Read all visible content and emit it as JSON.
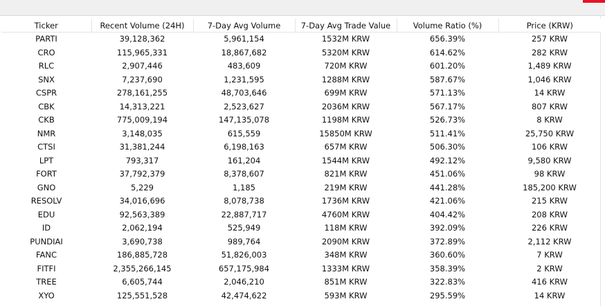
{
  "table": {
    "headers": [
      "Ticker",
      "Recent Volume (24H)",
      "7-Day Avg Volume",
      "7-Day Avg Trade Value",
      "Volume Ratio (%)",
      "Price (KRW)"
    ],
    "rows": [
      [
        "PARTI",
        "39,128,362",
        "5,961,154",
        "1532M KRW",
        "656.39%",
        "257 KRW"
      ],
      [
        "CRO",
        "115,965,331",
        "18,867,682",
        "5320M KRW",
        "614.62%",
        "282 KRW"
      ],
      [
        "RLC",
        "2,907,446",
        "483,609",
        "720M KRW",
        "601.20%",
        "1,489 KRW"
      ],
      [
        "SNX",
        "7,237,690",
        "1,231,595",
        "1288M KRW",
        "587.67%",
        "1,046 KRW"
      ],
      [
        "CSPR",
        "278,161,255",
        "48,703,646",
        "699M KRW",
        "571.13%",
        "14 KRW"
      ],
      [
        "CBK",
        "14,313,221",
        "2,523,627",
        "2036M KRW",
        "567.17%",
        "807 KRW"
      ],
      [
        "CKB",
        "775,009,194",
        "147,135,078",
        "1198M KRW",
        "526.73%",
        "8 KRW"
      ],
      [
        "NMR",
        "3,148,035",
        "615,559",
        "15850M KRW",
        "511.41%",
        "25,750 KRW"
      ],
      [
        "CTSI",
        "31,381,244",
        "6,198,163",
        "657M KRW",
        "506.30%",
        "106 KRW"
      ],
      [
        "LPT",
        "793,317",
        "161,204",
        "1544M KRW",
        "492.12%",
        "9,580 KRW"
      ],
      [
        "FORT",
        "37,792,379",
        "8,378,607",
        "821M KRW",
        "451.06%",
        "98 KRW"
      ],
      [
        "GNO",
        "5,229",
        "1,185",
        "219M KRW",
        "441.28%",
        "185,200 KRW"
      ],
      [
        "RESOLV",
        "34,016,696",
        "8,078,738",
        "1736M KRW",
        "421.06%",
        "215 KRW"
      ],
      [
        "EDU",
        "92,563,389",
        "22,887,717",
        "4760M KRW",
        "404.42%",
        "208 KRW"
      ],
      [
        "ID",
        "2,062,194",
        "525,949",
        "118M KRW",
        "392.09%",
        "226 KRW"
      ],
      [
        "PUNDIAI",
        "3,690,738",
        "989,764",
        "2090M KRW",
        "372.89%",
        "2,112 KRW"
      ],
      [
        "FANC",
        "186,885,728",
        "51,826,003",
        "348M KRW",
        "360.60%",
        "7 KRW"
      ],
      [
        "FITFI",
        "2,355,266,145",
        "657,175,984",
        "1333M KRW",
        "358.39%",
        "2 KRW"
      ],
      [
        "TREE",
        "6,605,744",
        "2,046,210",
        "851M KRW",
        "322.83%",
        "416 KRW"
      ],
      [
        "XYO",
        "125,551,528",
        "42,474,622",
        "593M KRW",
        "295.59%",
        "14 KRW"
      ]
    ]
  }
}
